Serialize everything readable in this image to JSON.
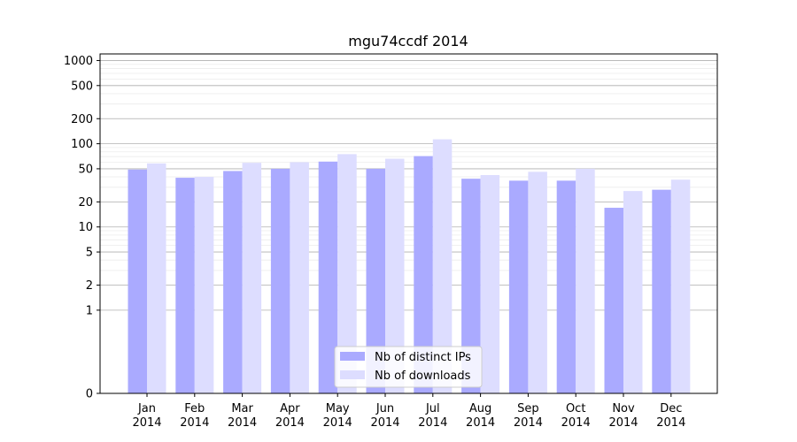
{
  "chart_data": {
    "type": "bar",
    "title": "mgu74ccdf 2014",
    "xlabel": "",
    "ylabel": "",
    "yscale": "symlog",
    "ylim": [
      0,
      1200
    ],
    "yticks": [
      0,
      1,
      2,
      5,
      10,
      20,
      50,
      100,
      200,
      500,
      1000
    ],
    "grid": "horizontal",
    "legend_position": "bottom-center",
    "categories": [
      [
        "Jan",
        "2014"
      ],
      [
        "Feb",
        "2014"
      ],
      [
        "Mar",
        "2014"
      ],
      [
        "Apr",
        "2014"
      ],
      [
        "May",
        "2014"
      ],
      [
        "Jun",
        "2014"
      ],
      [
        "Jul",
        "2014"
      ],
      [
        "Aug",
        "2014"
      ],
      [
        "Sep",
        "2014"
      ],
      [
        "Oct",
        "2014"
      ],
      [
        "Nov",
        "2014"
      ],
      [
        "Dec",
        "2014"
      ]
    ],
    "series": [
      {
        "name": "Nb of distinct IPs",
        "color": "#aaaaff",
        "values": [
          49,
          39,
          47,
          50,
          61,
          50,
          71,
          38,
          36,
          36,
          17,
          28
        ]
      },
      {
        "name": "Nb of downloads",
        "color": "#ddddff",
        "values": [
          58,
          40,
          59,
          60,
          75,
          66,
          113,
          42,
          46,
          50,
          27,
          37
        ]
      }
    ]
  }
}
